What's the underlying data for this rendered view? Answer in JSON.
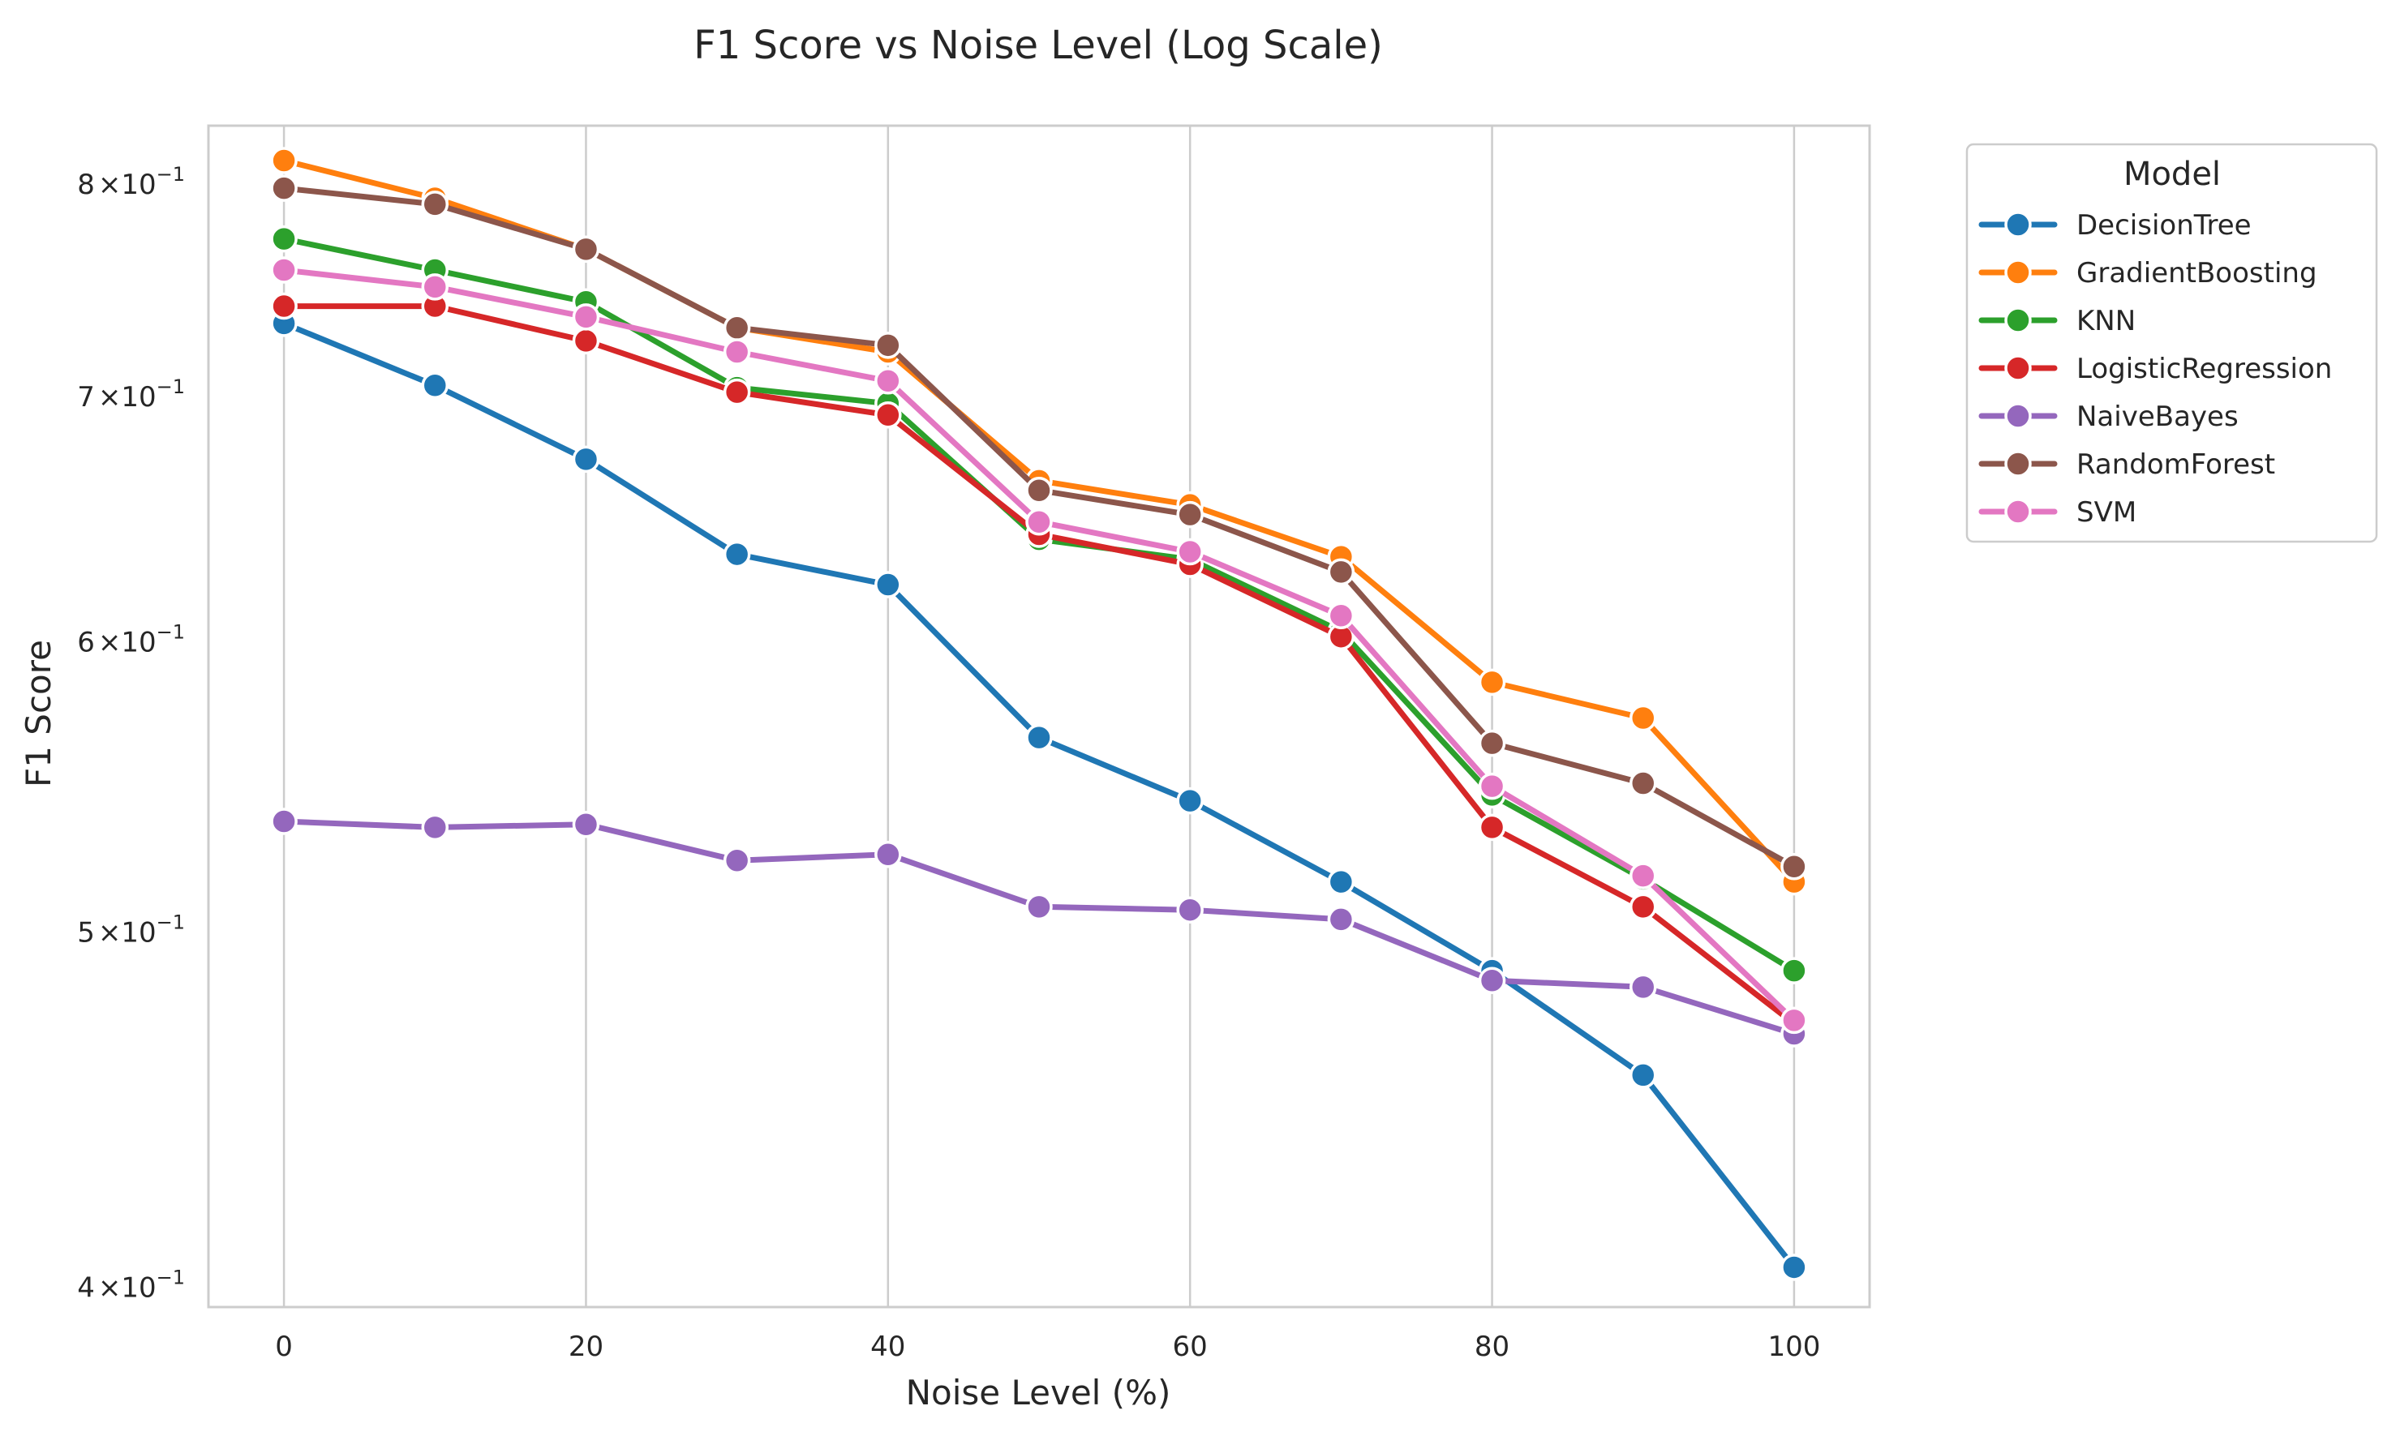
{
  "chart_data": {
    "type": "line",
    "title": "F1 Score vs Noise Level (Log Scale)",
    "xlabel": "Noise Level (%)",
    "ylabel": "F1 Score",
    "yscale": "log",
    "xlim": [
      -5,
      105
    ],
    "ylim": [
      0.395,
      0.83
    ],
    "x": [
      0,
      10,
      20,
      30,
      40,
      50,
      60,
      70,
      80,
      90,
      100
    ],
    "x_ticks": [
      0,
      20,
      40,
      60,
      80,
      100
    ],
    "x_tick_labels": [
      "0",
      "20",
      "40",
      "60",
      "80",
      "100"
    ],
    "y_ticks": [
      {
        "value": 0.8,
        "mantissa": "8",
        "base": "10",
        "exponent": "−1"
      },
      {
        "value": 0.7,
        "mantissa": "7",
        "base": "10",
        "exponent": "−1"
      },
      {
        "value": 0.6,
        "mantissa": "6",
        "base": "10",
        "exponent": "−1"
      },
      {
        "value": 0.5,
        "mantissa": "5",
        "base": "10",
        "exponent": "−1"
      },
      {
        "value": 0.4,
        "mantissa": "4",
        "base": "10",
        "exponent": "−1"
      }
    ],
    "grid": true,
    "legend": {
      "title": "Model",
      "placement": "outside-right"
    },
    "marker": "circle",
    "series": [
      {
        "name": "DecisionTree",
        "color": "#1f77b4",
        "values": [
          0.733,
          0.705,
          0.673,
          0.634,
          0.622,
          0.565,
          0.543,
          0.516,
          0.488,
          0.457,
          0.405
        ]
      },
      {
        "name": "GradientBoosting",
        "color": "#ff7f0e",
        "values": [
          0.812,
          0.793,
          0.768,
          0.731,
          0.72,
          0.664,
          0.654,
          0.633,
          0.585,
          0.572,
          0.516
        ]
      },
      {
        "name": "KNN",
        "color": "#2ca02c",
        "values": [
          0.773,
          0.758,
          0.743,
          0.704,
          0.697,
          0.64,
          0.632,
          0.604,
          0.545,
          0.517,
          0.488
        ]
      },
      {
        "name": "LogisticRegression",
        "color": "#d62728",
        "values": [
          0.741,
          0.741,
          0.725,
          0.702,
          0.692,
          0.642,
          0.63,
          0.602,
          0.534,
          0.508,
          0.472
        ]
      },
      {
        "name": "NaiveBayes",
        "color": "#9467bd",
        "values": [
          0.536,
          0.534,
          0.535,
          0.523,
          0.525,
          0.508,
          0.507,
          0.504,
          0.485,
          0.483,
          0.469
        ]
      },
      {
        "name": "RandomForest",
        "color": "#8c564b",
        "values": [
          0.798,
          0.79,
          0.768,
          0.731,
          0.723,
          0.66,
          0.65,
          0.627,
          0.563,
          0.549,
          0.521
        ]
      },
      {
        "name": "SVM",
        "color": "#e377c2",
        "values": [
          0.758,
          0.75,
          0.736,
          0.72,
          0.707,
          0.647,
          0.635,
          0.61,
          0.548,
          0.518,
          0.473
        ]
      }
    ]
  }
}
